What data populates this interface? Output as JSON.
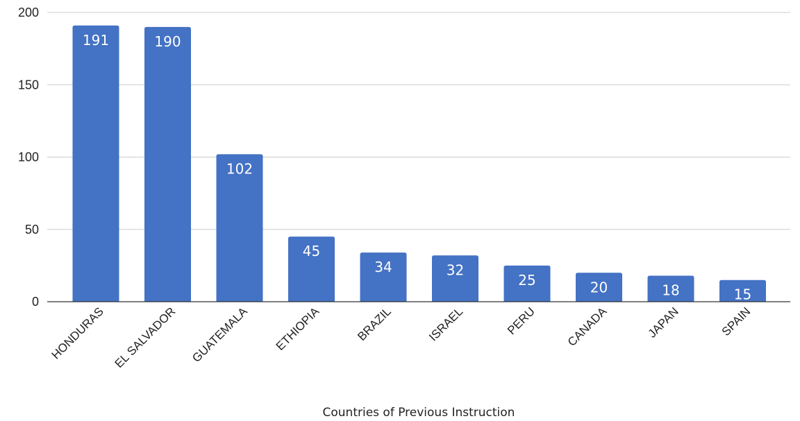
{
  "chart_data": {
    "type": "bar",
    "categories": [
      "HONDURAS",
      "EL SALVADOR",
      "GUATEMALA",
      "ETHIOPIA",
      "BRAZIL",
      "ISRAEL",
      "PERU",
      "CANADA",
      "JAPAN",
      "SPAIN"
    ],
    "values": [
      191,
      190,
      102,
      45,
      34,
      32,
      25,
      20,
      18,
      15
    ],
    "title": "",
    "xlabel": "Countries of Previous Instruction",
    "ylabel": "",
    "ylim": [
      0,
      200
    ],
    "yticks": [
      "0",
      "50",
      "100",
      "150",
      "200"
    ],
    "grid": true,
    "data_labels": true,
    "bar_color": "#4472c4"
  }
}
